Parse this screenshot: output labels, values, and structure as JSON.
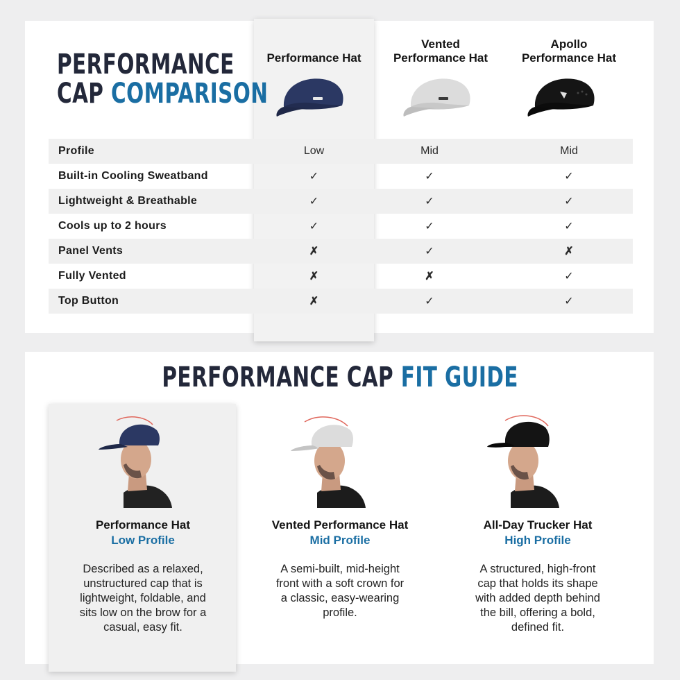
{
  "comparison": {
    "title_line1": "PERFORMANCE",
    "title_line2_a": "CAP ",
    "title_line2_b": "COMPARISON",
    "columns": [
      {
        "name": "Performance Hat",
        "cap_color": "#2c3a66"
      },
      {
        "name_line1": "Vented",
        "name_line2": "Performance Hat",
        "cap_color": "#d9d9d9"
      },
      {
        "name_line1": "Apollo",
        "name_line2": "Performance Hat",
        "cap_color": "#1a1a1a"
      }
    ],
    "rows": [
      {
        "feature": "Profile",
        "values": [
          "Low",
          "Mid",
          "Mid"
        ]
      },
      {
        "feature": "Built-in Cooling Sweatband",
        "values": [
          "✓",
          "✓",
          "✓"
        ]
      },
      {
        "feature": "Lightweight & Breathable",
        "values": [
          "✓",
          "✓",
          "✓"
        ]
      },
      {
        "feature": "Cools up to 2 hours",
        "values": [
          "✓",
          "✓",
          "✓"
        ]
      },
      {
        "feature": "Panel Vents",
        "values": [
          "✗",
          "✓",
          "✗"
        ]
      },
      {
        "feature": "Fully Vented",
        "values": [
          "✗",
          "✗",
          "✓"
        ]
      },
      {
        "feature": "Top Button",
        "values": [
          "✗",
          "✓",
          "✓"
        ]
      }
    ]
  },
  "fit_guide": {
    "title_a": "PERFORMANCE CAP ",
    "title_b": "FIT GUIDE",
    "items": [
      {
        "name": "Performance Hat",
        "profile": "Low Profile",
        "desc_lines": [
          "Described as a relaxed,",
          "unstructured cap that is",
          "lightweight, foldable, and",
          "sits low on the brow for a",
          "casual, easy fit."
        ]
      },
      {
        "name": "Vented Performance Hat",
        "profile": "Mid Profile",
        "desc_lines": [
          "A semi-built, mid-height",
          "front with a soft crown for",
          "a classic, easy-wearing",
          "profile."
        ]
      },
      {
        "name": "All-Day Trucker Hat",
        "profile": "High Profile",
        "desc_lines": [
          "A structured, high-front",
          "cap that holds its shape",
          "with added depth behind",
          "the bill, offering a bold,",
          "defined fit."
        ]
      }
    ]
  },
  "colors": {
    "accent": "#1a6ea3",
    "title_dark": "#23283a",
    "check": "#1a6ea3",
    "cross": "#d6202a",
    "profile_arc": "#e0675c"
  },
  "icons": {
    "check": "check-icon",
    "cross": "cross-icon"
  }
}
